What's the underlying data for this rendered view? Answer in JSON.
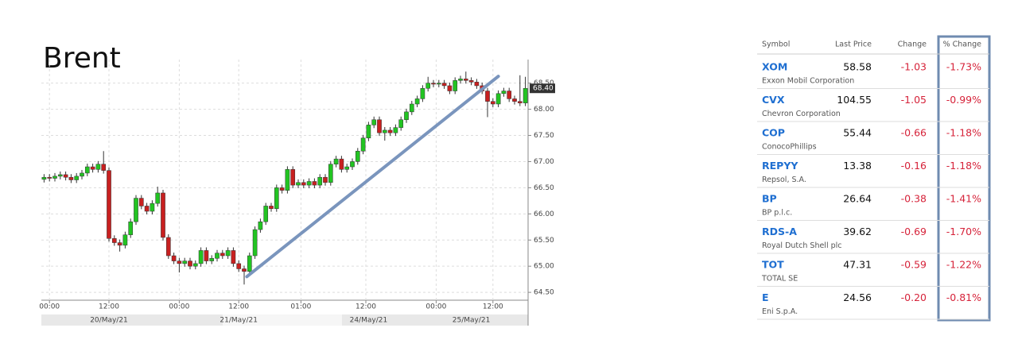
{
  "chart_data": {
    "type": "candlestick",
    "title": "Brent",
    "up_color": "#22c422",
    "down_color": "#c82020",
    "grid": true,
    "open": [
      66.66,
      66.7,
      66.68,
      66.72,
      66.75,
      66.7,
      66.65,
      66.72,
      66.78,
      66.9,
      66.85,
      66.95,
      66.83,
      65.53,
      65.45,
      65.4,
      65.6,
      65.85,
      66.3,
      66.15,
      66.05,
      66.2,
      66.4,
      65.55,
      65.2,
      65.1,
      65.05,
      65.1,
      65.0,
      65.05,
      65.3,
      65.1,
      65.15,
      65.25,
      65.2,
      65.3,
      65.05,
      64.95,
      64.9,
      65.2,
      65.7,
      65.85,
      66.15,
      66.1,
      66.5,
      66.45,
      66.85,
      66.55,
      66.6,
      66.55,
      66.62,
      66.55,
      66.7,
      66.6,
      66.95,
      67.05,
      66.85,
      66.9,
      67.0,
      67.2,
      67.45,
      67.7,
      67.8,
      67.55,
      67.6,
      67.55,
      67.65,
      67.8,
      67.95,
      68.1,
      68.2,
      68.4,
      68.5,
      68.48,
      68.5,
      68.45,
      68.35,
      68.55,
      68.58,
      68.55,
      68.52,
      68.45,
      68.35,
      68.15,
      68.1,
      68.3,
      68.35,
      68.2,
      68.15,
      68.12
    ],
    "high": [
      66.76,
      66.76,
      66.78,
      66.81,
      66.81,
      66.76,
      66.78,
      66.84,
      66.96,
      66.96,
      67.01,
      67.2,
      66.89,
      65.59,
      65.51,
      65.66,
      65.91,
      66.36,
      66.36,
      66.21,
      66.26,
      66.52,
      66.46,
      65.61,
      65.26,
      65.16,
      65.16,
      65.16,
      65.11,
      65.36,
      65.36,
      65.21,
      65.31,
      65.31,
      65.36,
      65.36,
      65.11,
      65.01,
      65.26,
      65.76,
      65.91,
      66.21,
      66.21,
      66.56,
      66.56,
      66.91,
      66.91,
      66.66,
      66.66,
      66.68,
      66.68,
      66.76,
      66.76,
      67.01,
      67.11,
      67.11,
      66.96,
      67.06,
      67.26,
      67.51,
      67.76,
      67.86,
      67.86,
      67.66,
      67.66,
      67.71,
      67.86,
      68.01,
      68.16,
      68.26,
      68.46,
      68.62,
      68.56,
      68.56,
      68.56,
      68.51,
      68.61,
      68.64,
      68.72,
      68.61,
      68.58,
      68.51,
      68.41,
      68.21,
      68.36,
      68.41,
      68.41,
      68.26,
      68.65,
      68.62
    ],
    "low": [
      66.6,
      66.62,
      66.62,
      66.66,
      66.64,
      66.59,
      66.59,
      66.66,
      66.72,
      66.79,
      66.79,
      66.77,
      65.47,
      65.39,
      65.28,
      65.34,
      65.54,
      65.79,
      66.09,
      65.99,
      65.99,
      66.14,
      65.49,
      65.14,
      65.04,
      64.88,
      64.99,
      64.94,
      64.94,
      64.99,
      65.04,
      65.04,
      65.09,
      65.14,
      65.14,
      64.99,
      64.89,
      64.65,
      64.84,
      65.14,
      65.64,
      65.79,
      66.04,
      66.04,
      66.39,
      66.39,
      66.49,
      66.49,
      66.49,
      66.49,
      66.49,
      66.49,
      66.54,
      66.54,
      66.89,
      66.79,
      66.79,
      66.84,
      66.94,
      67.14,
      67.39,
      67.64,
      67.49,
      67.4,
      67.49,
      67.49,
      67.59,
      67.74,
      67.89,
      68.04,
      68.14,
      68.34,
      68.42,
      68.42,
      68.39,
      68.29,
      68.29,
      68.49,
      68.49,
      68.46,
      68.39,
      68.29,
      67.85,
      68.04,
      68.04,
      68.24,
      68.14,
      68.09,
      68.06,
      68.06
    ],
    "close": [
      66.7,
      66.68,
      66.72,
      66.75,
      66.7,
      66.65,
      66.72,
      66.78,
      66.9,
      66.85,
      66.95,
      66.83,
      65.53,
      65.45,
      65.4,
      65.6,
      65.85,
      66.3,
      66.15,
      66.05,
      66.2,
      66.4,
      65.55,
      65.2,
      65.1,
      65.05,
      65.1,
      65.0,
      65.05,
      65.3,
      65.1,
      65.15,
      65.25,
      65.2,
      65.3,
      65.05,
      64.95,
      64.9,
      65.2,
      65.7,
      65.85,
      66.15,
      66.1,
      66.5,
      66.45,
      66.85,
      66.55,
      66.6,
      66.55,
      66.62,
      66.55,
      66.7,
      66.6,
      66.95,
      67.05,
      66.85,
      66.9,
      67.0,
      67.2,
      67.45,
      67.7,
      67.8,
      67.55,
      67.6,
      67.55,
      67.65,
      67.8,
      67.95,
      68.1,
      68.2,
      68.4,
      68.5,
      68.48,
      68.5,
      68.45,
      68.35,
      68.55,
      68.58,
      68.55,
      68.52,
      68.45,
      68.35,
      68.15,
      68.1,
      68.3,
      68.35,
      68.2,
      68.15,
      68.12,
      68.4
    ],
    "last_price_label": "68.40",
    "trendline": {
      "x": [
        37.5,
        84
      ],
      "y": [
        64.8,
        68.63
      ],
      "color": "#7a95bd"
    },
    "xlim": [
      -0.5,
      89.5
    ],
    "xticks": [
      {
        "value": 1,
        "label": "00:00"
      },
      {
        "value": 12,
        "label": "12:00"
      },
      {
        "value": 25,
        "label": "00:00"
      },
      {
        "value": 36,
        "label": "12:00"
      },
      {
        "value": 47.5,
        "label": "01:00"
      },
      {
        "value": 59.5,
        "label": "12:00"
      },
      {
        "value": 72.5,
        "label": "00:00"
      },
      {
        "value": 83,
        "label": "12:00"
      }
    ],
    "date_labels": [
      {
        "value": 12,
        "label": "20/May/21"
      },
      {
        "value": 36,
        "label": "21/May/21"
      },
      {
        "value": 60,
        "label": "24/May/21"
      },
      {
        "value": 79,
        "label": "25/May/21"
      }
    ],
    "ylim": [
      64.35,
      68.95
    ],
    "yticks": [
      {
        "value": 64.5,
        "label": "64.50"
      },
      {
        "value": 65,
        "label": "65.00"
      },
      {
        "value": 65.5,
        "label": "65.50"
      },
      {
        "value": 66,
        "label": "66.00"
      },
      {
        "value": 66.5,
        "label": "66.50"
      },
      {
        "value": 67,
        "label": "67.00"
      },
      {
        "value": 67.5,
        "label": "67.50"
      },
      {
        "value": 68,
        "label": "68.00"
      },
      {
        "value": 68.5,
        "label": "68.50"
      }
    ]
  },
  "table": {
    "header": [
      "Symbol",
      "Last Price",
      "Change",
      "% Change"
    ],
    "rows": [
      [
        "XOM",
        "Exxon Mobil Corporation",
        "58.58",
        "-1.03",
        "-1.73%"
      ],
      [
        "CVX",
        "Chevron Corporation",
        "104.55",
        "-1.05",
        "-0.99%"
      ],
      [
        "COP",
        "ConocoPhillips",
        "55.44",
        "-0.66",
        "-1.18%"
      ],
      [
        "REPYY",
        "Repsol, S.A.",
        "13.38",
        "-0.16",
        "-1.18%"
      ],
      [
        "BP",
        "BP p.l.c.",
        "26.64",
        "-0.38",
        "-1.41%"
      ],
      [
        "RDS-A",
        "Royal Dutch Shell plc",
        "39.62",
        "-0.69",
        "-1.70%"
      ],
      [
        "TOT",
        "TOTAL SE",
        "47.31",
        "-0.59",
        "-1.22%"
      ],
      [
        "E",
        "Eni S.p.A.",
        "24.56",
        "-0.20",
        "-0.81%"
      ]
    ]
  }
}
